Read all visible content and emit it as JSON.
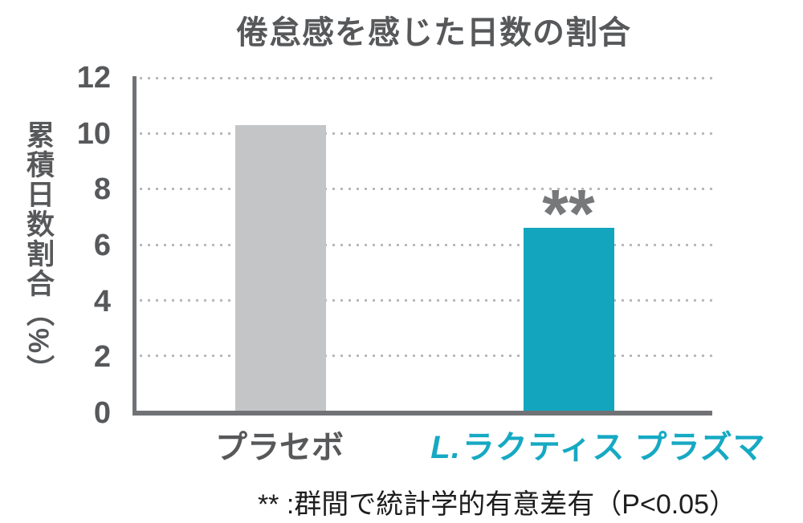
{
  "chart_data": {
    "type": "bar",
    "title": "倦怠感を感じた日数の割合",
    "categories": [
      "プラセボ",
      "L.ラクティス プラズマ"
    ],
    "values": [
      10.3,
      6.6
    ],
    "bar_colors": [
      "#c4c5c7",
      "#13a5be"
    ],
    "xlabel": "",
    "ylabel": "累積日数割合（%）",
    "ylim": [
      0,
      12
    ],
    "yticks": [
      0,
      2,
      4,
      6,
      8,
      10,
      12
    ],
    "grid": "dotted-horizontal",
    "legend": "none",
    "annotation": {
      "text": "**",
      "above_category": "L.ラクティス プラズマ",
      "meaning": "群間で統計学的有意差有（P<0.05）"
    }
  },
  "labels": {
    "placebo": "プラセボ",
    "lactis_prefix": "L.",
    "lactis_rest": "ラクティス プラズマ"
  },
  "footnote": "** :群間で統計学的有意差有（P<0.05）",
  "colors": {
    "title_text": "#57585a",
    "tick_text": "#57585a",
    "axis": "#717275",
    "grid_dots": "#b9b9bb",
    "placebo_bar": "#c4c5c7",
    "lactis_bar": "#13a5be",
    "lactis_label_text": "#16a9c3",
    "annotation_text": "#77787a",
    "footnote_text": "#1d1d1d",
    "background": "#ffffff"
  }
}
